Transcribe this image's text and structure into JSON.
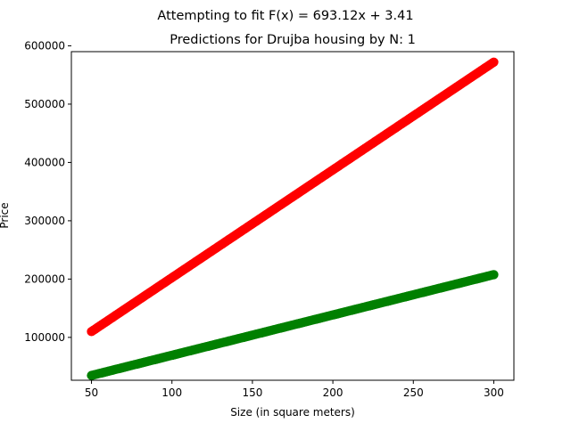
{
  "figure": {
    "suptitle": "Attempting to fit F(x) = 693.12x + 3.41"
  },
  "chart_data": {
    "type": "scatter",
    "title": "Predictions for Drujba housing by N: 1",
    "xlabel": "Size (in square meters)",
    "ylabel": "Price",
    "xlim": [
      37.5,
      312.5
    ],
    "ylim": [
      26500,
      590000
    ],
    "x_ticks": [
      50,
      100,
      150,
      200,
      250,
      300
    ],
    "y_ticks": [
      100000,
      200000,
      300000,
      400000,
      500000,
      600000
    ],
    "grid": false,
    "series": [
      {
        "color": "#ff0000",
        "x_start": 50,
        "x_end": 300,
        "y_start": 110000,
        "y_end": 572000,
        "num_points": 250
      },
      {
        "color": "#008000",
        "x_start": 50,
        "x_end": 300,
        "y_start": 34700,
        "y_end": 207600,
        "num_points": 250
      }
    ]
  }
}
